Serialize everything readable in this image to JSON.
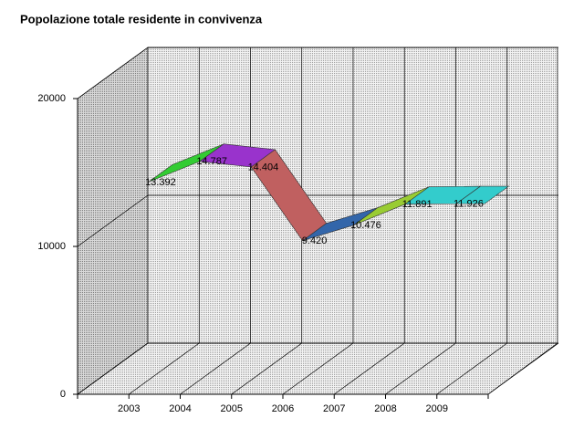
{
  "chart_data": {
    "type": "line3d",
    "title": "Popolazione totale residente in convivenza",
    "categories": [
      "2003",
      "2004",
      "2005",
      "2006",
      "2007",
      "2008",
      "2009"
    ],
    "values": [
      13392,
      14787,
      14404,
      9420,
      10476,
      11891,
      11926
    ],
    "value_labels": [
      "13.392",
      "14.787",
      "14.404",
      "9.420",
      "10.476",
      "11.891",
      "11.926"
    ],
    "colors": [
      "#33cc33",
      "#9933cc",
      "#c06060",
      "#3366aa",
      "#99cc33",
      "#33cccc",
      "#33cccc"
    ],
    "ylim": [
      0,
      20000
    ],
    "yticks": [
      0,
      10000,
      20000
    ],
    "grid": true
  }
}
